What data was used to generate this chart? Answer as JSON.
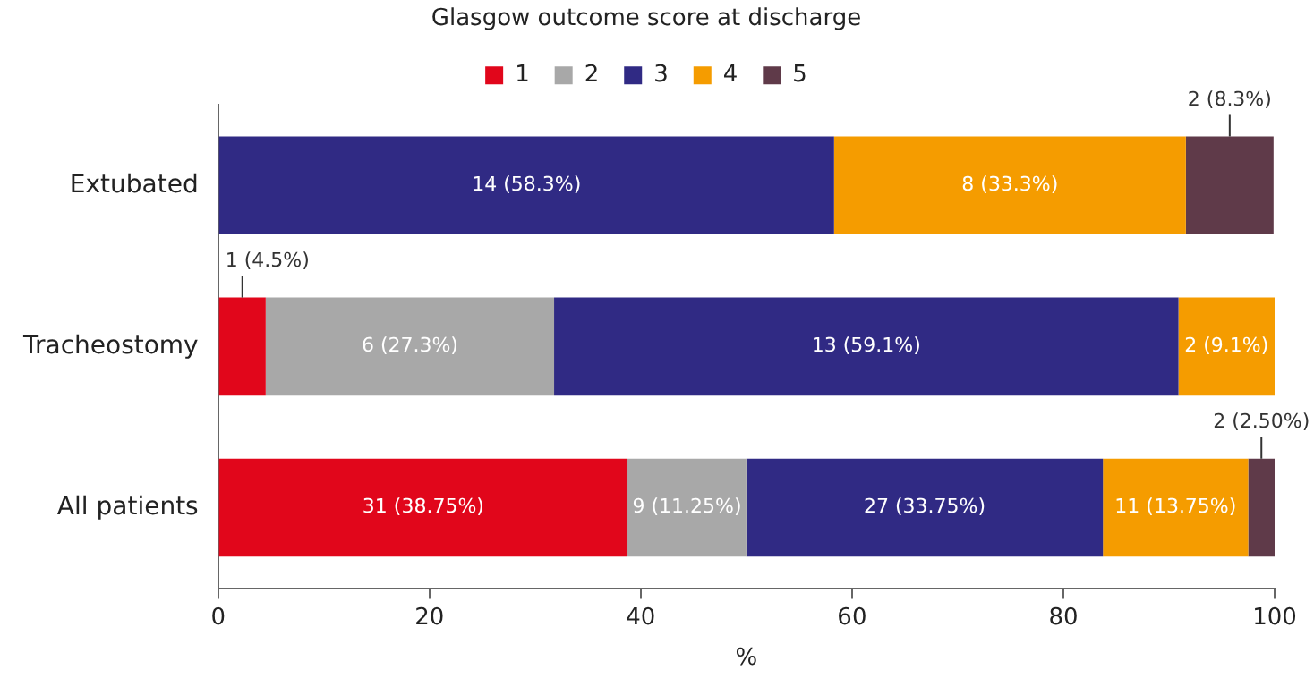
{
  "chart_data": {
    "type": "bar",
    "orientation": "horizontal",
    "stacked": true,
    "legend_title": "Glasgow outcome score at discharge",
    "legend": "top",
    "xlabel": "%",
    "xlim": [
      0,
      100
    ],
    "xticks": [
      0,
      20,
      40,
      60,
      80,
      100
    ],
    "grid": false,
    "categories": [
      "Extubated",
      "Tracheostomy",
      "All patients"
    ],
    "series": [
      {
        "name": "1",
        "color": "#e1061b",
        "values": [
          0,
          4.5,
          38.75
        ],
        "value_labels": [
          null,
          "1 (4.5%)",
          "31 (38.75%)"
        ]
      },
      {
        "name": "2",
        "color": "#a8a8a8",
        "values": [
          0,
          27.3,
          11.25
        ],
        "value_labels": [
          null,
          "6 (27.3%)",
          "9 (11.25%)"
        ]
      },
      {
        "name": "3",
        "color": "#302a84",
        "values": [
          58.3,
          59.1,
          33.75
        ],
        "value_labels": [
          "14 (58.3%)",
          "13 (59.1%)",
          "27 (33.75%)"
        ]
      },
      {
        "name": "4",
        "color": "#f59c00",
        "values": [
          33.3,
          9.1,
          13.75
        ],
        "value_labels": [
          "8 (33.3%)",
          "2 (9.1%)",
          "11 (13.75%)"
        ]
      },
      {
        "name": "5",
        "color": "#5f3a49",
        "values": [
          8.3,
          0,
          2.5
        ],
        "value_labels": [
          "2 (8.3%)",
          null,
          "2 (2.50%)"
        ]
      }
    ]
  }
}
